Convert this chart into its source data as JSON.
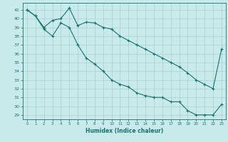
{
  "xlabel": "Humidex (Indice chaleur)",
  "background_color": "#c8eaea",
  "grid_color": "#a8d0d0",
  "line_color": "#1a7070",
  "xlim": [
    -0.5,
    23.5
  ],
  "ylim": [
    28.5,
    41.8
  ],
  "yticks": [
    29,
    30,
    31,
    32,
    33,
    34,
    35,
    36,
    37,
    38,
    39,
    40,
    41
  ],
  "xticks": [
    0,
    1,
    2,
    3,
    4,
    5,
    6,
    7,
    8,
    9,
    10,
    11,
    12,
    13,
    14,
    15,
    16,
    17,
    18,
    19,
    20,
    21,
    22,
    23
  ],
  "line1_x": [
    0,
    1,
    2,
    3,
    4,
    5,
    6,
    7,
    8,
    9,
    10,
    11,
    12,
    13,
    14,
    15,
    16,
    17,
    18,
    19,
    20,
    21,
    22,
    23
  ],
  "line1_y": [
    41.0,
    40.3,
    39.0,
    39.8,
    40.0,
    41.2,
    39.2,
    39.6,
    39.5,
    39.0,
    38.8,
    38.0,
    37.5,
    37.0,
    36.5,
    36.0,
    35.5,
    35.0,
    34.5,
    33.8,
    33.0,
    32.5,
    32.0,
    36.5
  ],
  "line2_x": [
    0,
    1,
    2,
    3,
    4,
    5,
    6,
    7,
    8,
    9,
    10,
    11,
    12,
    13,
    14,
    15,
    16,
    17,
    18,
    19,
    20,
    21,
    22,
    23
  ],
  "line2_y": [
    41.0,
    40.3,
    38.8,
    38.0,
    39.5,
    39.0,
    37.0,
    35.5,
    34.8,
    34.0,
    33.0,
    32.5,
    32.2,
    31.5,
    31.2,
    31.0,
    31.0,
    30.5,
    30.5,
    29.5,
    29.0,
    29.0,
    29.0,
    30.2
  ]
}
